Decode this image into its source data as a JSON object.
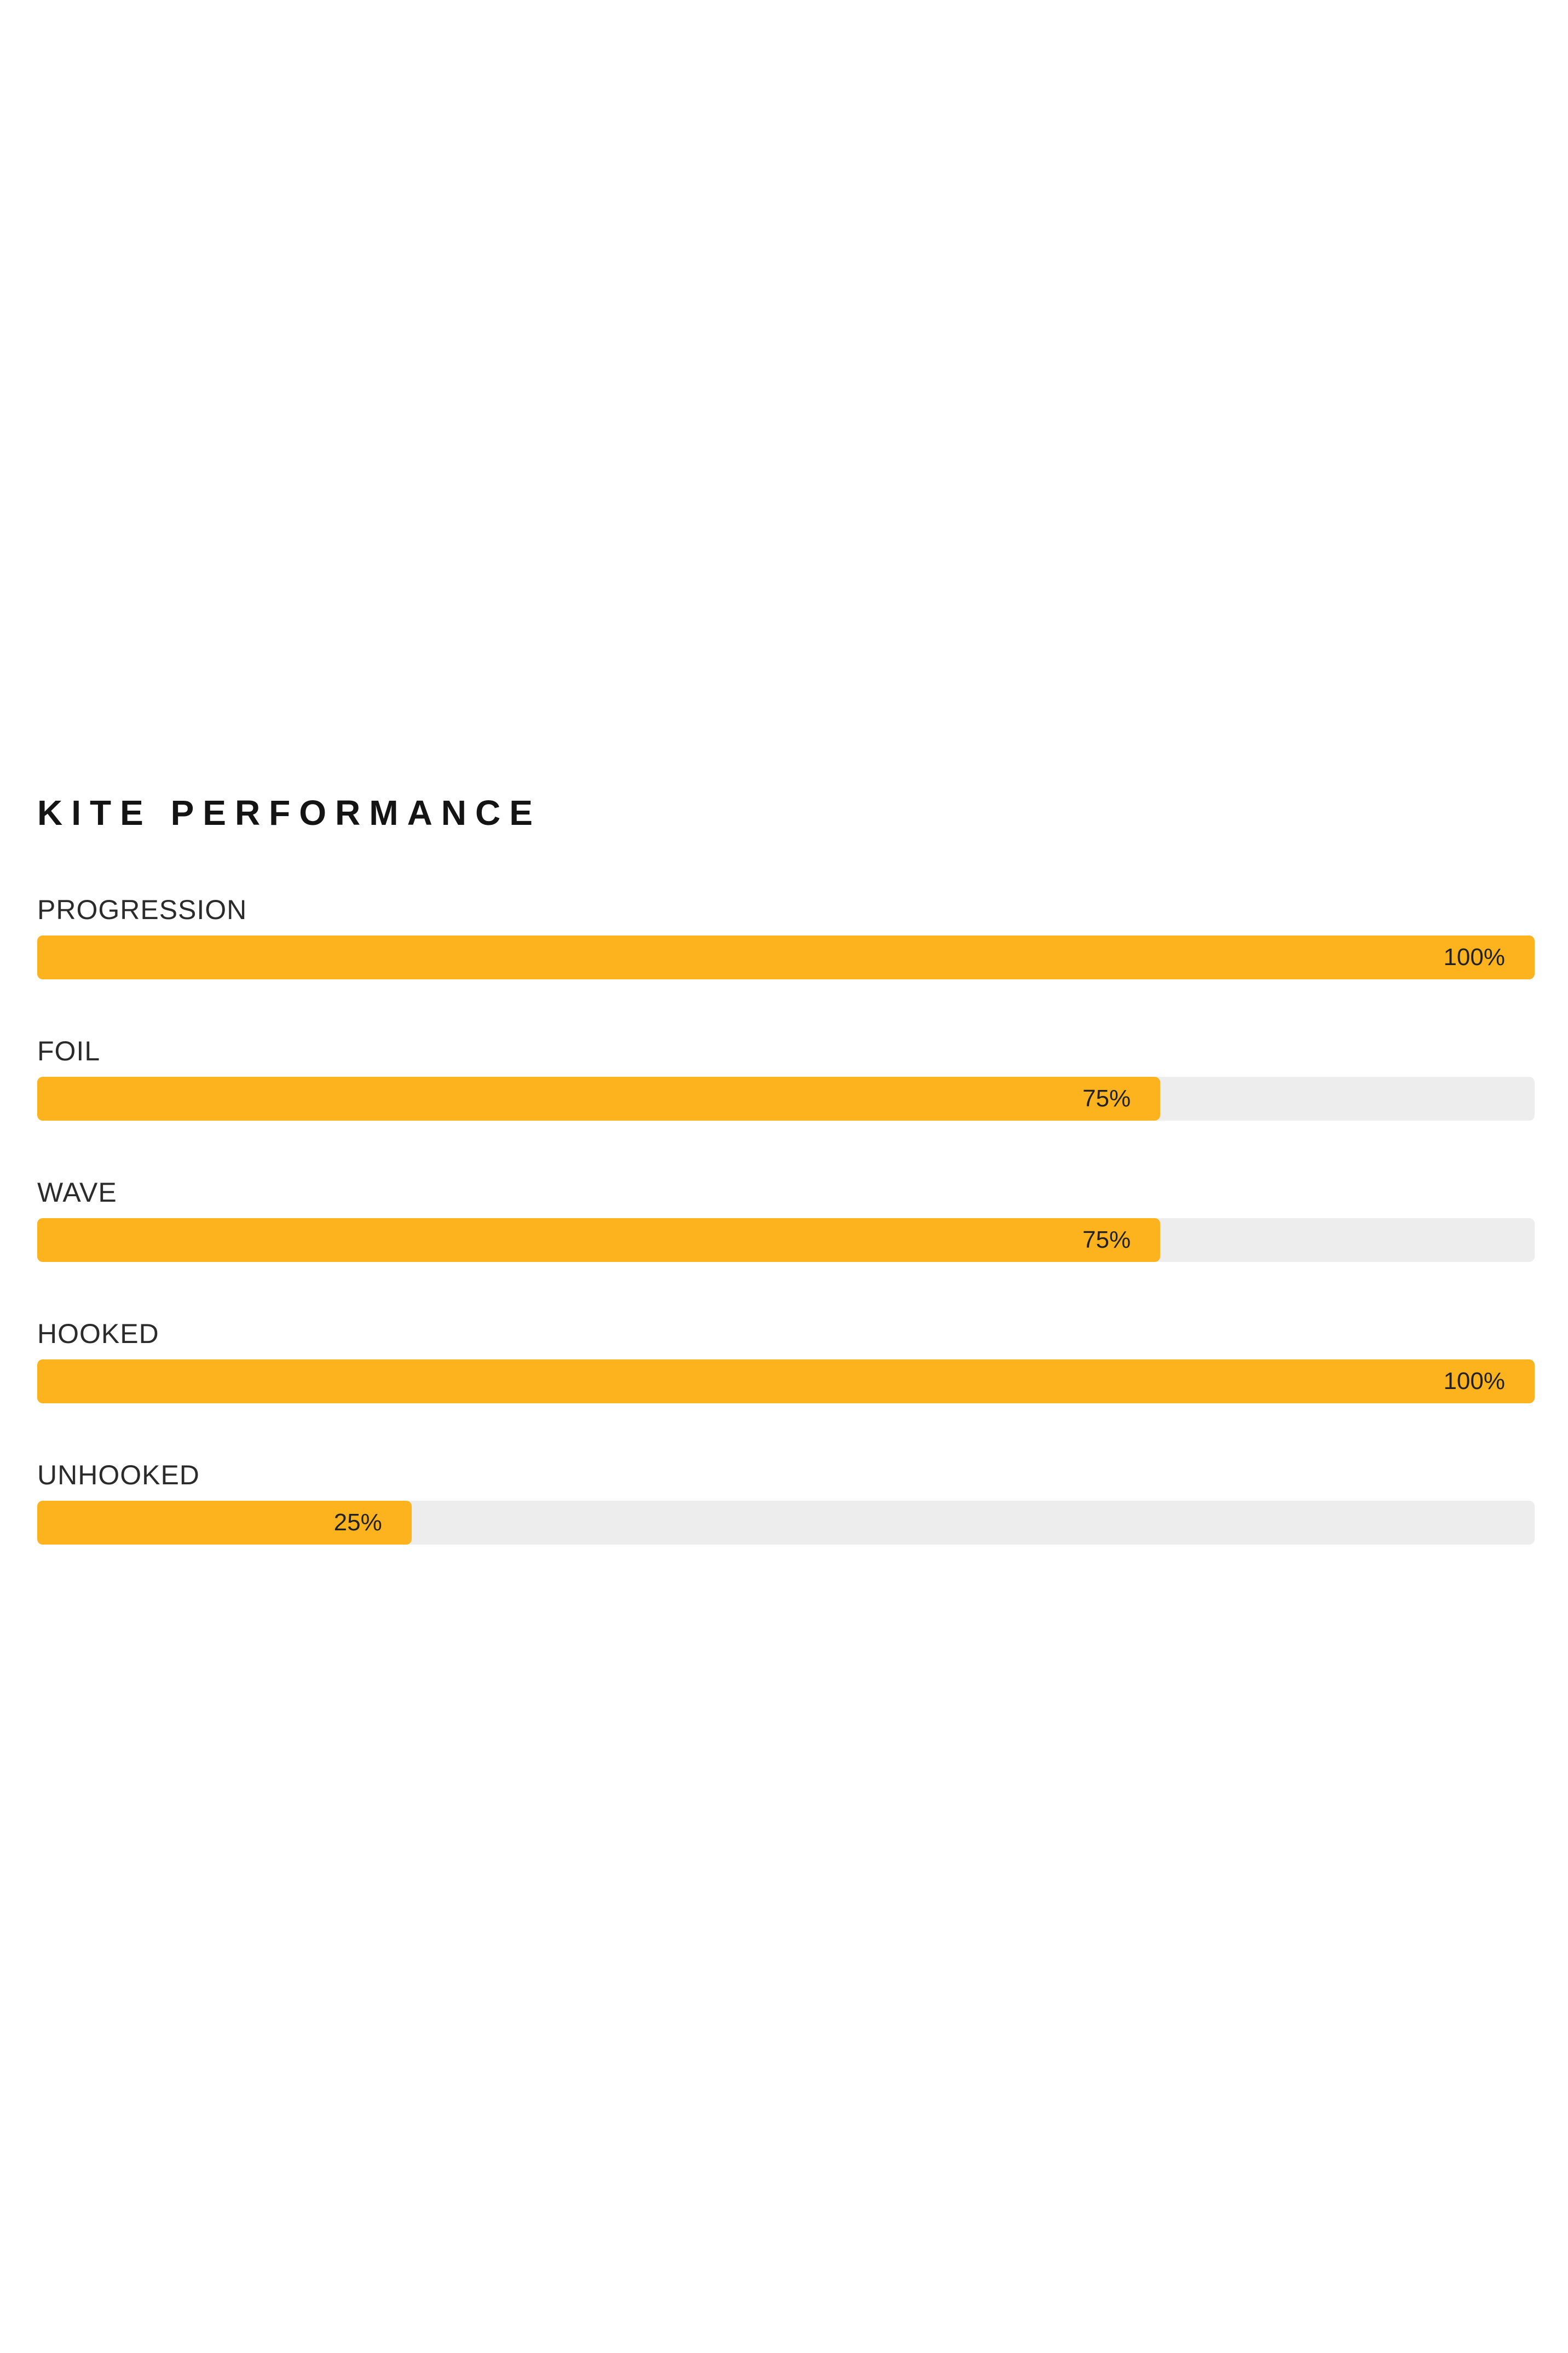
{
  "page": {
    "background_color": "#FFFFFF"
  },
  "section": {
    "title": "KITE PERFORMANCE"
  },
  "chart_data": {
    "type": "bar",
    "orientation": "horizontal",
    "title": "KITE PERFORMANCE",
    "categories": [
      "PROGRESSION",
      "FOIL",
      "WAVE",
      "HOOKED",
      "UNHOOKED"
    ],
    "values": [
      100,
      75,
      75,
      100,
      25
    ],
    "value_labels": [
      "100%",
      "75%",
      "75%",
      "100%",
      "25%"
    ],
    "xlim": [
      0,
      100
    ],
    "grid": false,
    "legend": false,
    "bar_color": "#FDB31E",
    "track_color": "#EDEDED",
    "value_text_color": "#222222",
    "label_text_color": "#2B2B2B",
    "title_text_color": "#141414"
  }
}
